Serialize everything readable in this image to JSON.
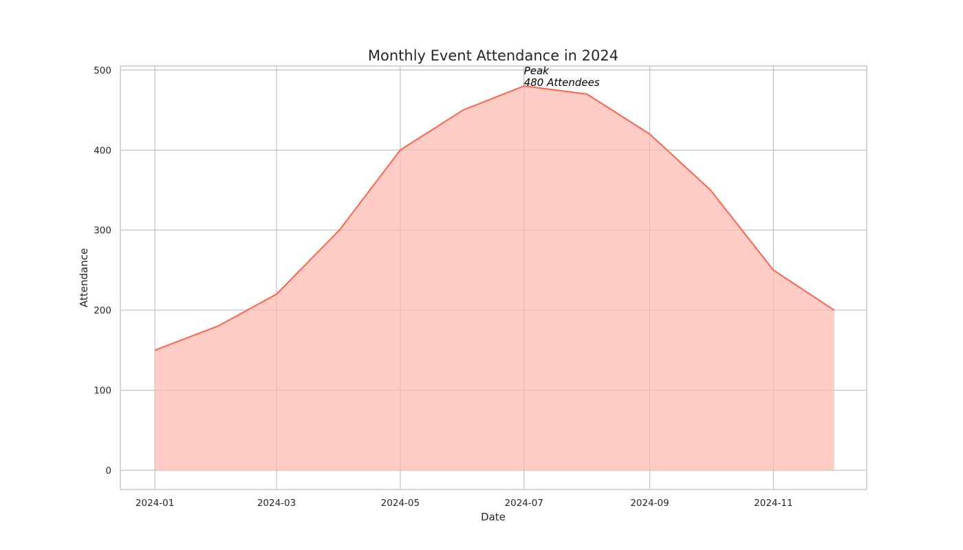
{
  "chart_data": {
    "type": "area",
    "title": "Monthly Event Attendance in 2024",
    "xlabel": "Date",
    "ylabel": "Attendance",
    "x": [
      "2024-01-01",
      "2024-02-01",
      "2024-03-01",
      "2024-04-01",
      "2024-05-01",
      "2024-06-01",
      "2024-07-01",
      "2024-08-01",
      "2024-09-01",
      "2024-10-01",
      "2024-11-01",
      "2024-12-01"
    ],
    "series": [
      {
        "values": [
          150,
          180,
          220,
          300,
          400,
          450,
          480,
          470,
          420,
          350,
          250,
          200
        ],
        "line_color": "#ff6347",
        "fill_color": "#ffcdc6"
      }
    ],
    "xticks": [
      "2024-01",
      "2024-03",
      "2024-05",
      "2024-07",
      "2024-09",
      "2024-11"
    ],
    "yticks": [
      0,
      100,
      200,
      300,
      400,
      500
    ],
    "ylim": [
      -24,
      505
    ],
    "xlim": [
      "2023-12-15",
      "2024-12-17"
    ],
    "grid": true,
    "annotation": {
      "x": "2024-07-01",
      "y": 480,
      "lines": [
        "Peak",
        "480 Attendees"
      ]
    },
    "colors": {
      "grid": "#cccccc",
      "spine": "#cccccc",
      "text": "#262626"
    }
  }
}
